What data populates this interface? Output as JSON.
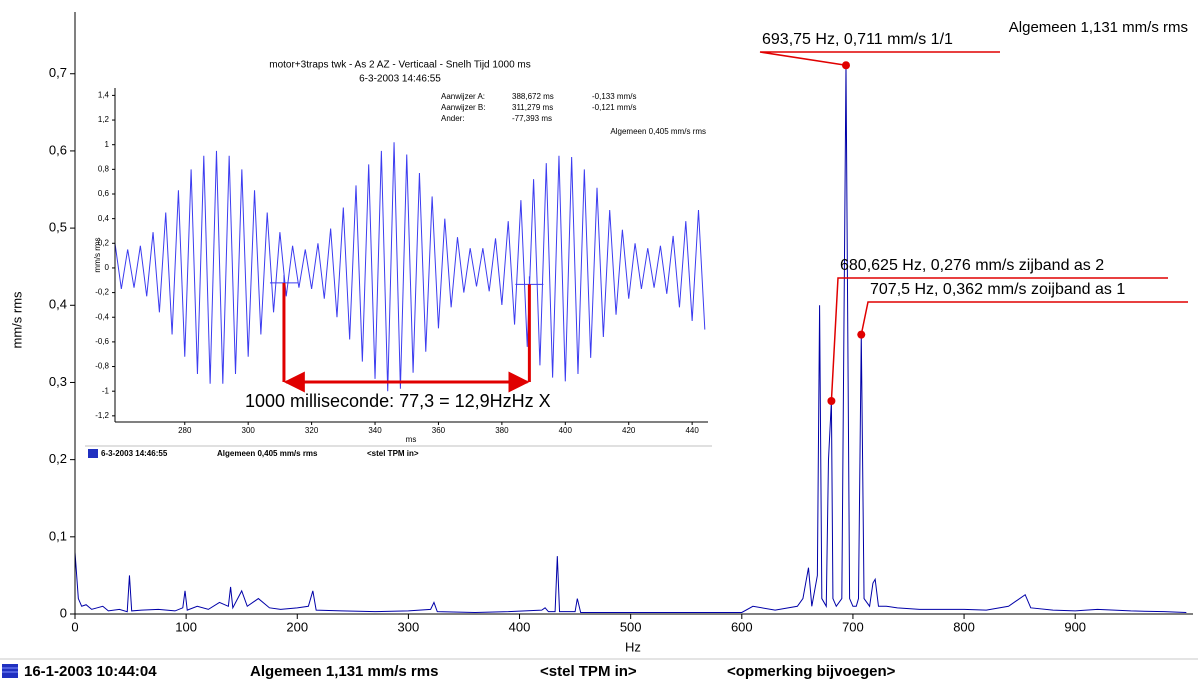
{
  "chart_data": [
    {
      "type": "line",
      "x_label": "Hz",
      "y_label": "mm/s rms",
      "overall": "Algemeen 1,131 mm/s rms",
      "color": "#0000a8",
      "marker_color": "#e00000",
      "xlim": [
        0,
        1006
      ],
      "ylim": [
        0,
        0.78
      ],
      "xticks": [
        0,
        100,
        200,
        300,
        400,
        500,
        600,
        700,
        800,
        900
      ],
      "yticks": [
        0,
        {
          "value": 0.1,
          "label": "0,1"
        },
        {
          "value": 0.2,
          "label": "0,2"
        },
        {
          "value": 0.3,
          "label": "0,3"
        },
        {
          "value": 0.4,
          "label": "0,4"
        },
        {
          "value": 0.5,
          "label": "0,5"
        },
        {
          "value": 0.6,
          "label": "0,6"
        },
        {
          "value": 0.7,
          "label": "0,7"
        }
      ],
      "x": [
        0,
        3,
        6,
        10,
        15,
        20,
        25,
        30,
        40,
        47,
        49,
        51,
        60,
        75,
        90,
        97,
        99,
        101,
        110,
        120,
        130,
        138,
        140,
        142,
        150,
        155,
        165,
        175,
        185,
        200,
        210,
        214,
        217,
        240,
        270,
        300,
        320,
        323,
        326,
        360,
        390,
        420,
        423,
        426,
        432,
        434,
        436,
        450,
        452,
        455,
        500,
        550,
        600,
        610,
        630,
        650,
        655,
        660,
        663,
        668,
        670,
        672,
        676,
        678,
        680.625,
        682,
        685,
        690,
        693.75,
        697,
        700,
        703,
        705,
        707.5,
        710,
        715,
        718,
        720,
        723,
        730,
        740,
        760,
        800,
        820,
        840,
        855,
        860,
        880,
        900,
        920,
        950,
        980,
        1000
      ],
      "values": [
        0.08,
        0.02,
        0.01,
        0.012,
        0.006,
        0.008,
        0.01,
        0.004,
        0.006,
        0.003,
        0.05,
        0.004,
        0.005,
        0.006,
        0.004,
        0.008,
        0.03,
        0.005,
        0.01,
        0.006,
        0.015,
        0.01,
        0.035,
        0.008,
        0.03,
        0.01,
        0.02,
        0.008,
        0.006,
        0.008,
        0.01,
        0.03,
        0.005,
        0.004,
        0.003,
        0.004,
        0.006,
        0.015,
        0.003,
        0.002,
        0.003,
        0.005,
        0.008,
        0.003,
        0.003,
        0.075,
        0.003,
        0.003,
        0.02,
        0.002,
        0.002,
        0.002,
        0.002,
        0.01,
        0.005,
        0.01,
        0.02,
        0.06,
        0.01,
        0.05,
        0.4,
        0.02,
        0.01,
        0.2,
        0.276,
        0.02,
        0.01,
        0.02,
        0.711,
        0.02,
        0.01,
        0.01,
        0.02,
        0.362,
        0.02,
        0.01,
        0.04,
        0.045,
        0.01,
        0.01,
        0.008,
        0.006,
        0.006,
        0.005,
        0.01,
        0.025,
        0.008,
        0.005,
        0.004,
        0.006,
        0.004,
        0.003,
        0.002
      ],
      "annotations": [
        {
          "text": "693,75 Hz, 0,711 mm/s 1/1",
          "x": 693.75,
          "y": 0.711
        },
        {
          "text": "680,625 Hz, 0,276 mm/s zijband as 2",
          "x": 680.625,
          "y": 0.276
        },
        {
          "text": "707,5 Hz, 0,362 mm/s zoijband as 1",
          "x": 707.5,
          "y": 0.362
        }
      ]
    },
    {
      "type": "line",
      "title": "motor+3traps twk - As 2 AZ - Verticaal - Snelh Tijd 1000 ms",
      "subtitle": "6-3-2003 14:46:55",
      "x_label": "ms",
      "y_label": "mm/s rms",
      "overall": "Algemeen 0,405 mm/s rms",
      "color": "#3c3cf0",
      "marker_color": "#e00000",
      "annotation": "1000 milliseconde: 77,3 = 12,9HzHz X",
      "xlim": [
        258,
        445
      ],
      "ylim": [
        -1.25,
        1.46
      ],
      "xticks": [
        280,
        300,
        320,
        340,
        360,
        380,
        400,
        420,
        440
      ],
      "yticks": [
        {
          "value": 1.4,
          "label": "1,4"
        },
        {
          "value": 1.2,
          "label": "1,2"
        },
        1,
        {
          "value": 0.8,
          "label": "0,8"
        },
        {
          "value": 0.6,
          "label": "0,6"
        },
        {
          "value": 0.4,
          "label": "0,4"
        },
        {
          "value": 0.2,
          "label": "0,2"
        },
        0,
        {
          "value": -0.2,
          "label": "-0,2"
        },
        {
          "value": -0.4,
          "label": "-0,4"
        },
        {
          "value": -0.6,
          "label": "-0,6"
        },
        {
          "value": -0.8,
          "label": "-0,8"
        },
        -1,
        {
          "value": -1.2,
          "label": "-1,2"
        }
      ],
      "cursors": [
        {
          "label": "Aanwijzer A:",
          "x": 388.672,
          "x_label": "388,672 ms",
          "y": -0.133,
          "y_label": "-0,133 mm/s"
        },
        {
          "label": "Aanwijzer B:",
          "x": 311.279,
          "x_label": "311,279 ms",
          "y": -0.121,
          "y_label": "-0,121 mm/s"
        }
      ],
      "difference": {
        "label": "Ander:",
        "x_label": "-77,393 ms"
      },
      "footer": {
        "date": "6-3-2003 14:46:55",
        "overall": "Algemeen 0,405 mm/s rms",
        "tpm": "<stel TPM in>"
      },
      "x": [
        258,
        260,
        262,
        264,
        266,
        268,
        270,
        272,
        274,
        276,
        278,
        280,
        282,
        284,
        286,
        288,
        290,
        292,
        294,
        296,
        298,
        300,
        302,
        304,
        306,
        308,
        310,
        312,
        314,
        316,
        318,
        320,
        322,
        324,
        326,
        328,
        330,
        332,
        334,
        336,
        338,
        340,
        342,
        344,
        346,
        348,
        350,
        352,
        354,
        356,
        358,
        360,
        362,
        364,
        366,
        368,
        370,
        372,
        374,
        376,
        378,
        380,
        382,
        384,
        386,
        388,
        390,
        392,
        394,
        396,
        398,
        400,
        402,
        404,
        406,
        408,
        410,
        412,
        414,
        416,
        418,
        420,
        422,
        424,
        426,
        428,
        430,
        432,
        434,
        436,
        438,
        440,
        442,
        444
      ],
      "values": [
        0.2,
        -0.17,
        0.15,
        -0.16,
        0.18,
        -0.23,
        0.29,
        -0.36,
        0.45,
        -0.54,
        0.63,
        -0.72,
        0.8,
        -0.86,
        0.91,
        -0.94,
        0.95,
        -0.94,
        0.91,
        -0.86,
        0.8,
        -0.72,
        0.63,
        -0.54,
        0.45,
        -0.36,
        0.29,
        -0.23,
        0.18,
        -0.16,
        0.15,
        -0.17,
        0.2,
        -0.25,
        0.32,
        -0.4,
        0.49,
        -0.58,
        0.67,
        -0.76,
        0.84,
        -0.9,
        0.95,
        -1.0,
        1.02,
        -0.98,
        0.92,
        -0.85,
        0.77,
        -0.68,
        0.58,
        -0.49,
        0.4,
        -0.32,
        0.25,
        -0.2,
        0.16,
        -0.15,
        0.16,
        -0.19,
        0.24,
        -0.3,
        0.38,
        -0.46,
        0.55,
        -0.64,
        0.72,
        -0.79,
        0.85,
        -0.89,
        0.91,
        -0.92,
        0.9,
        -0.86,
        0.8,
        -0.73,
        0.65,
        -0.56,
        0.47,
        -0.38,
        0.31,
        -0.25,
        0.2,
        -0.17,
        0.16,
        -0.16,
        0.18,
        -0.21,
        0.26,
        -0.32,
        0.38,
        -0.43,
        0.47,
        -0.5
      ]
    }
  ],
  "footer": {
    "date": "16-1-2003 10:44:04",
    "overall": "Algemeen 1,131 mm/s rms",
    "tpm": "<stel TPM in>",
    "remark": "<opmerking bijvoegen>"
  }
}
